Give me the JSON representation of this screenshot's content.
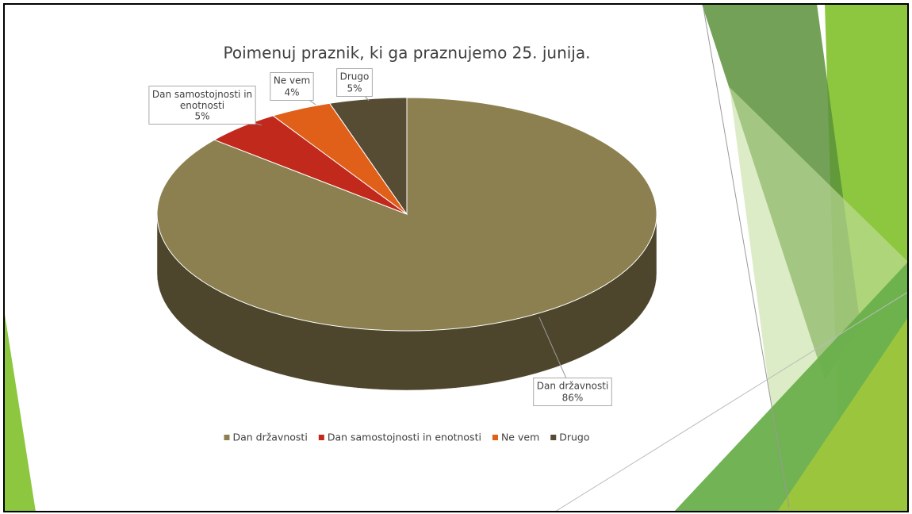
{
  "chart_data": {
    "type": "pie3d",
    "title": "Poimenuj praznik, ki ga praznujemo 25. junija.",
    "categories": [
      "Dan državnosti",
      "Dan samostojnosti in enotnosti",
      "Ne vem",
      "Drugo"
    ],
    "values": [
      86,
      5,
      4,
      5
    ],
    "value_labels": [
      "86%",
      "5%",
      "4%",
      "5%"
    ],
    "colors": [
      "#8c8050",
      "#c0291b",
      "#e0601a",
      "#564b33"
    ],
    "legend": "bottom"
  }
}
